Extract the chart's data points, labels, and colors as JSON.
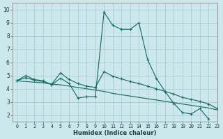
{
  "xlabel": "Humidex (Indice chaleur)",
  "xlim": [
    -0.5,
    23
  ],
  "ylim": [
    1.5,
    10.5
  ],
  "yticks": [
    2,
    3,
    4,
    5,
    6,
    7,
    8,
    9,
    10
  ],
  "xticks": [
    0,
    1,
    2,
    3,
    4,
    5,
    6,
    7,
    8,
    9,
    10,
    11,
    12,
    13,
    14,
    15,
    16,
    17,
    18,
    19,
    20,
    21,
    22,
    23
  ],
  "bg_color": "#cce8ec",
  "grid_color": "#aacdd4",
  "line_color": "#1a6e6a",
  "series_main": [
    4.6,
    5.0,
    4.7,
    4.6,
    4.3,
    4.8,
    4.4,
    3.3,
    3.4,
    3.4,
    9.8,
    8.8,
    8.5,
    8.5,
    9.0,
    6.2,
    4.8,
    3.8,
    2.9,
    2.2,
    2.1,
    2.5,
    1.7,
    null
  ],
  "series_straight": [
    4.6,
    4.55,
    4.5,
    4.45,
    4.35,
    4.3,
    4.2,
    4.1,
    4.0,
    3.9,
    3.8,
    3.65,
    3.55,
    3.45,
    3.35,
    3.25,
    3.15,
    3.05,
    2.95,
    2.85,
    2.75,
    2.65,
    2.55,
    2.4
  ],
  "series_mid": [
    4.6,
    4.85,
    4.65,
    4.55,
    4.35,
    5.2,
    4.7,
    4.4,
    4.2,
    4.1,
    5.3,
    4.95,
    4.75,
    4.55,
    4.4,
    4.2,
    4.0,
    3.8,
    3.6,
    3.35,
    3.2,
    3.05,
    2.85,
    2.5
  ]
}
